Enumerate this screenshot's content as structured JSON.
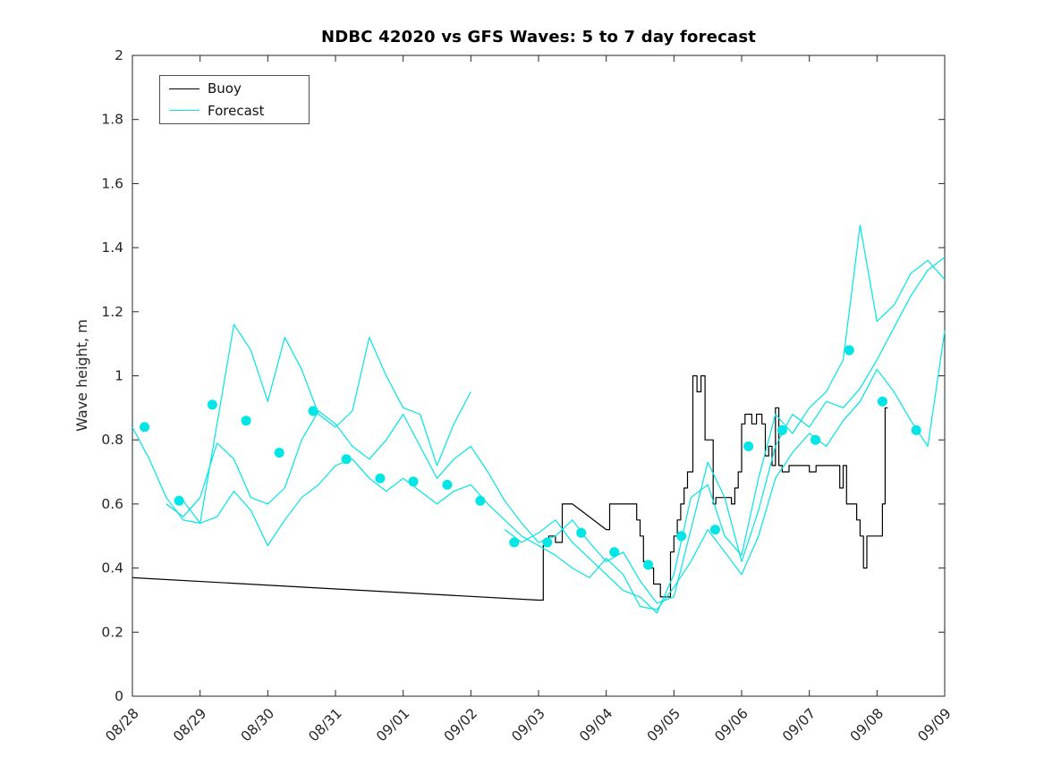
{
  "chart_data": {
    "type": "line",
    "title": "NDBC 42020 vs GFS Waves: 5 to 7 day forecast",
    "xlabel": "",
    "ylabel": "Wave height, m",
    "xlim": [
      0,
      12
    ],
    "ylim": [
      0,
      2
    ],
    "grid": false,
    "x_tick_labels": [
      "08/28",
      "08/29",
      "08/30",
      "08/31",
      "09/01",
      "09/02",
      "09/03",
      "09/04",
      "09/05",
      "09/06",
      "09/07",
      "09/08",
      "09/09"
    ],
    "y_tick_labels": [
      "0",
      "0.2",
      "0.4",
      "0.6",
      "0.8",
      "1",
      "1.2",
      "1.4",
      "1.6",
      "1.8",
      "2"
    ],
    "legend": {
      "position": "top-left",
      "entries": [
        {
          "label": "Buoy",
          "color": "#000000"
        },
        {
          "label": "Forecast",
          "color": "#00E5E5"
        }
      ]
    },
    "series": [
      {
        "name": "Buoy",
        "type": "line",
        "color": "#000000",
        "points": [
          [
            0,
            0.37
          ],
          [
            6.0,
            0.3
          ],
          [
            6.07,
            0.3
          ],
          [
            6.07,
            0.47
          ],
          [
            6.15,
            0.47
          ],
          [
            6.15,
            0.5
          ],
          [
            6.25,
            0.5
          ],
          [
            6.25,
            0.48
          ],
          [
            6.35,
            0.48
          ],
          [
            6.35,
            0.6
          ],
          [
            6.5,
            0.6
          ],
          [
            7.0,
            0.52
          ],
          [
            7.05,
            0.52
          ],
          [
            7.05,
            0.6
          ],
          [
            7.45,
            0.6
          ],
          [
            7.45,
            0.55
          ],
          [
            7.5,
            0.55
          ],
          [
            7.5,
            0.5
          ],
          [
            7.55,
            0.5
          ],
          [
            7.55,
            0.42
          ],
          [
            7.65,
            0.42
          ],
          [
            7.65,
            0.4
          ],
          [
            7.7,
            0.4
          ],
          [
            7.7,
            0.35
          ],
          [
            7.8,
            0.35
          ],
          [
            7.8,
            0.31
          ],
          [
            7.95,
            0.31
          ],
          [
            7.95,
            0.45
          ],
          [
            8.0,
            0.45
          ],
          [
            8.0,
            0.5
          ],
          [
            8.05,
            0.5
          ],
          [
            8.05,
            0.55
          ],
          [
            8.1,
            0.55
          ],
          [
            8.1,
            0.6
          ],
          [
            8.15,
            0.6
          ],
          [
            8.15,
            0.65
          ],
          [
            8.2,
            0.65
          ],
          [
            8.2,
            0.7
          ],
          [
            8.28,
            0.7
          ],
          [
            8.28,
            1.0
          ],
          [
            8.34,
            1.0
          ],
          [
            8.34,
            0.95
          ],
          [
            8.4,
            0.95
          ],
          [
            8.4,
            1.0
          ],
          [
            8.46,
            1.0
          ],
          [
            8.46,
            0.8
          ],
          [
            8.58,
            0.8
          ],
          [
            8.58,
            0.6
          ],
          [
            8.62,
            0.6
          ],
          [
            8.62,
            0.62
          ],
          [
            8.85,
            0.62
          ],
          [
            8.85,
            0.6
          ],
          [
            8.9,
            0.6
          ],
          [
            8.9,
            0.65
          ],
          [
            8.95,
            0.65
          ],
          [
            8.95,
            0.7
          ],
          [
            9.0,
            0.7
          ],
          [
            9.0,
            0.85
          ],
          [
            9.05,
            0.85
          ],
          [
            9.05,
            0.88
          ],
          [
            9.15,
            0.88
          ],
          [
            9.15,
            0.85
          ],
          [
            9.22,
            0.85
          ],
          [
            9.22,
            0.88
          ],
          [
            9.3,
            0.88
          ],
          [
            9.3,
            0.85
          ],
          [
            9.35,
            0.85
          ],
          [
            9.35,
            0.75
          ],
          [
            9.4,
            0.75
          ],
          [
            9.4,
            0.78
          ],
          [
            9.45,
            0.78
          ],
          [
            9.45,
            0.72
          ],
          [
            9.5,
            0.72
          ],
          [
            9.5,
            0.9
          ],
          [
            9.55,
            0.9
          ],
          [
            9.55,
            0.72
          ],
          [
            9.6,
            0.72
          ],
          [
            9.6,
            0.7
          ],
          [
            9.7,
            0.7
          ],
          [
            9.7,
            0.72
          ],
          [
            10.0,
            0.72
          ],
          [
            10.0,
            0.7
          ],
          [
            10.1,
            0.7
          ],
          [
            10.1,
            0.72
          ],
          [
            10.45,
            0.72
          ],
          [
            10.45,
            0.65
          ],
          [
            10.5,
            0.65
          ],
          [
            10.5,
            0.72
          ],
          [
            10.55,
            0.72
          ],
          [
            10.55,
            0.6
          ],
          [
            10.7,
            0.6
          ],
          [
            10.7,
            0.55
          ],
          [
            10.75,
            0.55
          ],
          [
            10.75,
            0.5
          ],
          [
            10.8,
            0.5
          ],
          [
            10.8,
            0.4
          ],
          [
            10.85,
            0.4
          ],
          [
            10.85,
            0.5
          ],
          [
            10.9,
            0.5
          ],
          [
            11.08,
            0.5
          ],
          [
            11.08,
            0.6
          ],
          [
            11.12,
            0.6
          ],
          [
            11.12,
            0.9
          ],
          [
            11.16,
            0.9
          ]
        ]
      },
      {
        "name": "Forecast run 1",
        "type": "line",
        "color": "#00E5E5",
        "x_start": 0,
        "x_step": 0.25,
        "values": [
          0.84,
          0.74,
          0.62,
          0.55,
          0.54,
          0.85,
          1.16,
          1.08,
          0.92,
          1.12,
          1.02,
          0.88,
          0.84,
          0.89,
          1.12,
          1.0,
          0.9,
          0.88,
          0.72,
          0.85,
          0.95,
          null,
          null,
          null,
          null,
          null,
          null,
          null,
          null,
          null,
          null,
          null,
          null,
          null,
          null,
          null,
          null,
          null,
          null,
          null,
          null,
          null,
          null,
          null,
          null,
          null,
          null,
          null,
          null
        ]
      },
      {
        "name": "Forecast run 2",
        "type": "line",
        "color": "#00E5E5",
        "x_start": 0,
        "x_step": 0.25,
        "values": [
          null,
          null,
          0.6,
          0.56,
          0.62,
          0.79,
          0.74,
          0.62,
          0.6,
          0.65,
          0.8,
          0.89,
          0.85,
          0.78,
          0.74,
          0.8,
          0.88,
          0.78,
          0.68,
          0.74,
          0.78,
          0.7,
          0.61,
          0.54,
          0.48,
          0.5,
          0.55,
          0.48,
          0.42,
          0.45,
          0.36,
          0.29,
          0.31,
          0.52,
          0.73,
          0.62,
          0.42,
          0.58,
          0.78,
          0.88,
          0.84,
          0.92,
          0.9,
          0.96,
          1.05,
          1.15,
          1.25,
          1.33,
          1.37
        ]
      },
      {
        "name": "Forecast run 3",
        "type": "line",
        "color": "#00E5E5",
        "x_start": 0,
        "x_step": 0.25,
        "values": [
          null,
          null,
          null,
          0.61,
          0.54,
          0.56,
          0.64,
          0.58,
          0.47,
          0.55,
          0.62,
          0.66,
          0.72,
          0.74,
          0.68,
          0.64,
          0.68,
          0.64,
          0.6,
          0.64,
          0.66,
          0.6,
          0.55,
          0.5,
          0.47,
          0.44,
          0.4,
          0.37,
          0.43,
          0.38,
          0.28,
          0.27,
          0.34,
          0.42,
          0.52,
          0.45,
          0.38,
          0.5,
          0.68,
          0.76,
          0.82,
          0.78,
          0.86,
          0.92,
          1.02,
          0.95,
          0.86,
          0.78,
          1.14
        ]
      },
      {
        "name": "Forecast run 4",
        "type": "line",
        "color": "#00E5E5",
        "x_start": 0,
        "x_step": 0.25,
        "values": [
          null,
          null,
          null,
          null,
          null,
          null,
          null,
          null,
          null,
          null,
          null,
          null,
          null,
          null,
          null,
          null,
          null,
          null,
          null,
          null,
          null,
          null,
          0.52,
          0.48,
          0.51,
          0.55,
          0.48,
          0.43,
          0.38,
          0.33,
          0.31,
          0.26,
          0.38,
          0.62,
          0.66,
          0.5,
          0.44,
          0.68,
          0.88,
          0.82,
          0.9,
          0.95,
          1.05,
          1.47,
          1.17,
          1.22,
          1.32,
          1.36,
          1.3
        ]
      },
      {
        "name": "Forecast markers",
        "type": "scatter",
        "color": "#00E5E5",
        "x": [
          0.18,
          0.69,
          1.18,
          1.68,
          2.17,
          2.67,
          3.16,
          3.66,
          4.15,
          4.65,
          5.14,
          5.64,
          6.13,
          6.63,
          7.12,
          7.62,
          8.11,
          8.61,
          9.1,
          9.6,
          10.09,
          10.59,
          11.08,
          11.58
        ],
        "y": [
          0.84,
          0.61,
          0.91,
          0.86,
          0.76,
          0.89,
          0.74,
          0.68,
          0.67,
          0.66,
          0.61,
          0.48,
          0.48,
          0.51,
          0.45,
          0.41,
          0.5,
          0.52,
          0.78,
          0.83,
          0.8,
          1.08,
          0.92,
          0.83
        ]
      }
    ]
  }
}
